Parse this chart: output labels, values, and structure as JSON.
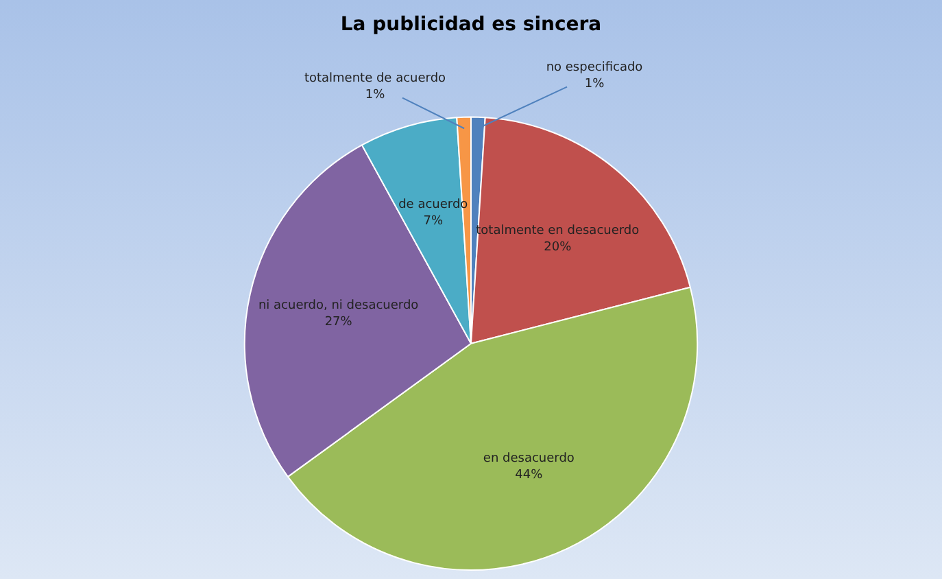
{
  "chart_data": {
    "type": "pie",
    "title": "La publicidad es sincera",
    "categories": [
      "no especificado",
      "totalmente en desacuerdo",
      "en desacuerdo",
      "ni acuerdo, ni desacuerdo",
      "de acuerdo",
      "totalmente de acuerdo"
    ],
    "values": [
      1,
      20,
      44,
      27,
      7,
      1
    ],
    "value_labels": [
      "1%",
      "20%",
      "44%",
      "27%",
      "7%",
      "1%"
    ],
    "colors": [
      "#4f81bd",
      "#c0504d",
      "#9bbb59",
      "#8064a2",
      "#4bacc6",
      "#f79646"
    ],
    "legend": false
  }
}
